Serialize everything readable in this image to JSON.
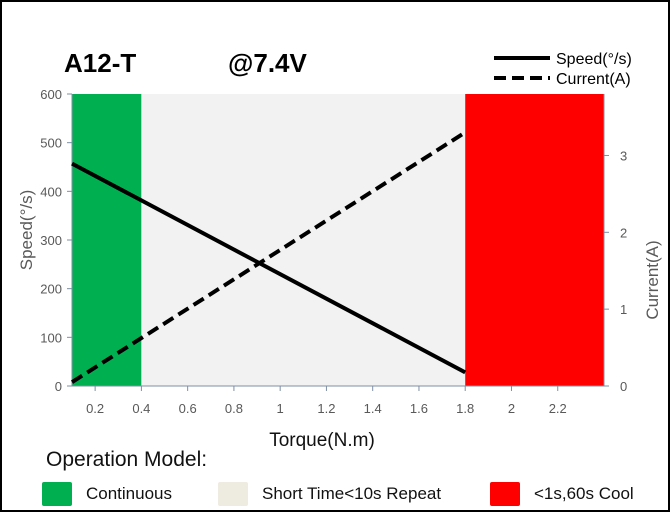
{
  "chart_data": {
    "type": "line",
    "model": "A12-T",
    "voltage": "@7.4V",
    "xlabel": "Torque(N.m)",
    "ylabel": "Speed(°/s)",
    "y2label": "Current(A)",
    "xlim": [
      0.1,
      2.4
    ],
    "ylim": [
      0,
      600
    ],
    "y2lim": [
      0,
      3.8
    ],
    "xticks": [
      "0.2",
      "0.4",
      "0.6",
      "0.8",
      "1",
      "1.2",
      "1.4",
      "1.6",
      "1.8",
      "2",
      "2.2"
    ],
    "yticks": [
      "0",
      "100",
      "200",
      "300",
      "400",
      "500",
      "600"
    ],
    "y2ticks": [
      "0",
      "1",
      "2",
      "3"
    ],
    "grid": false,
    "legend_position": "top-right",
    "series": [
      {
        "name": "Speed(°/s)",
        "axis": "left",
        "style": "solid",
        "x": [
          0.1,
          1.8
        ],
        "y": [
          457,
          28
        ]
      },
      {
        "name": "Current(A)",
        "axis": "right",
        "style": "dashed",
        "x": [
          0.1,
          1.8
        ],
        "y": [
          0.05,
          3.3
        ]
      }
    ],
    "regions": [
      {
        "label": "Continuous",
        "x": [
          0.1,
          0.4
        ],
        "color": "#00b050"
      },
      {
        "label": "Short Time<10s Repeat",
        "x": [
          0.4,
          1.8
        ],
        "color": "#f2f2f2"
      },
      {
        "label": "<1s,60s Cool",
        "x": [
          1.8,
          2.4
        ],
        "color": "#ff0000"
      }
    ]
  },
  "operation_title": "Operation Model:",
  "legend_items": [
    {
      "label": "Continuous",
      "color": "#00b050"
    },
    {
      "label": "Short Time<10s Repeat",
      "color": "#eeece1"
    },
    {
      "label": "<1s,60s Cool",
      "color": "#ff0000"
    }
  ]
}
